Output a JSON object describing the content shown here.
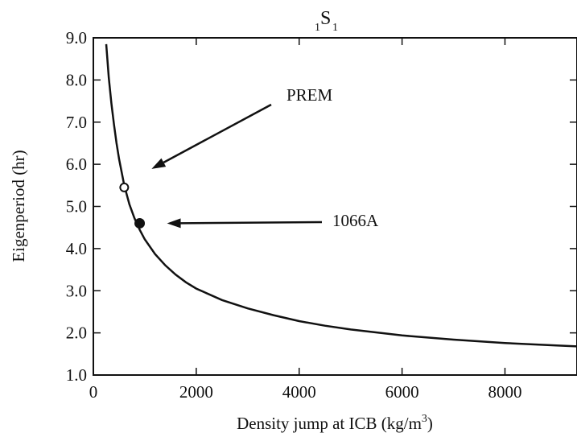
{
  "chart_data": {
    "type": "line",
    "title": {
      "prefix": "1",
      "main": "S",
      "suffix": "1"
    },
    "xlabel": {
      "text": "Density jump at ICB (kg/m",
      "sup": "3",
      "tail": ")"
    },
    "ylabel": "Eigenperiod (hr)",
    "xlim": [
      0,
      9400
    ],
    "ylim": [
      1.0,
      9.0
    ],
    "x_ticks": [
      0,
      2000,
      4000,
      6000,
      8000
    ],
    "x_tick_labels": [
      "0",
      "2000",
      "4000",
      "6000",
      "8000"
    ],
    "y_ticks": [
      1.0,
      2.0,
      3.0,
      4.0,
      5.0,
      6.0,
      7.0,
      8.0,
      9.0
    ],
    "y_tick_labels": [
      "1.0",
      "2.0",
      "3.0",
      "4.0",
      "5.0",
      "6.0",
      "7.0",
      "8.0",
      "9.0"
    ],
    "grid": false,
    "series": [
      {
        "x": [
          250,
          300,
          350,
          400,
          450,
          500,
          600,
          700,
          800,
          900,
          1000,
          1200,
          1400,
          1600,
          1800,
          2000,
          2500,
          3000,
          3500,
          4000,
          4500,
          5000,
          6000,
          7000,
          8000,
          9000,
          9400
        ],
        "y": [
          8.85,
          8.05,
          7.45,
          6.95,
          6.5,
          6.12,
          5.5,
          5.05,
          4.72,
          4.45,
          4.22,
          3.87,
          3.6,
          3.38,
          3.2,
          3.05,
          2.78,
          2.58,
          2.42,
          2.28,
          2.17,
          2.08,
          1.94,
          1.84,
          1.76,
          1.7,
          1.68
        ]
      }
    ],
    "points": [
      {
        "label": "PREM",
        "x": 600,
        "y": 5.45,
        "marker": "open-circle"
      },
      {
        "label": "1066A",
        "x": 900,
        "y": 4.6,
        "marker": "filled-circle"
      }
    ],
    "annotations": [
      {
        "text": "PREM",
        "points_to": "PREM"
      },
      {
        "text": "1066A",
        "points_to": "1066A"
      }
    ]
  }
}
